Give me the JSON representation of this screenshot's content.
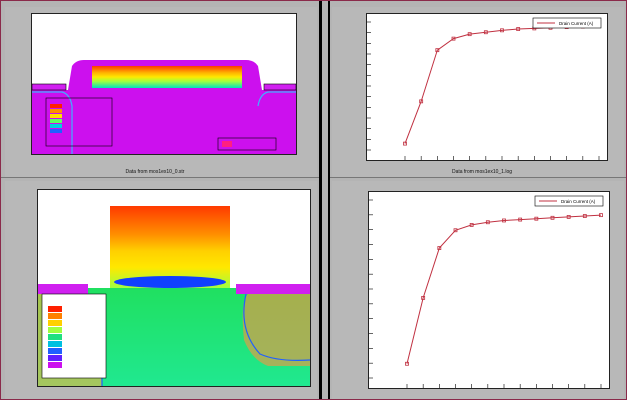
{
  "window": {
    "accent_border": "#8a2a4a",
    "background": "#b4b4b4"
  },
  "panels": [
    {
      "id": "structure-top",
      "caption": "Data from mos1ex10_0.str"
    },
    {
      "id": "curve-top",
      "caption": "Data from mos1ex10_1.log",
      "legend": "Drain Current (A)"
    },
    {
      "id": "structure-bottom",
      "caption": ""
    },
    {
      "id": "curve-bottom",
      "caption": "",
      "legend": "Drain Current (A)"
    }
  ],
  "chart_data": [
    {
      "type": "line",
      "legend": "Drain Current (A)",
      "color": "#c03040",
      "x": [
        0,
        0.25,
        0.5,
        0.75,
        1.0,
        1.25,
        1.5,
        1.75,
        2.0,
        2.25,
        2.5,
        2.75,
        3.0
      ],
      "y": [
        0.05,
        0.38,
        0.78,
        0.87,
        0.905,
        0.92,
        0.935,
        0.945,
        0.95,
        0.955,
        0.96,
        0.965,
        0.97
      ],
      "ylim": [
        0,
        1.0
      ]
    },
    {
      "type": "line",
      "legend": "Drain Current (A)",
      "color": "#c03040",
      "x": [
        0,
        0.25,
        0.5,
        0.75,
        1.0,
        1.25,
        1.5,
        1.75,
        2.0,
        2.25,
        2.5,
        2.75,
        3.0
      ],
      "y": [
        0.08,
        0.45,
        0.73,
        0.83,
        0.86,
        0.875,
        0.885,
        0.89,
        0.895,
        0.9,
        0.905,
        0.91,
        0.915
      ],
      "ylim": [
        0,
        1.0
      ]
    }
  ]
}
